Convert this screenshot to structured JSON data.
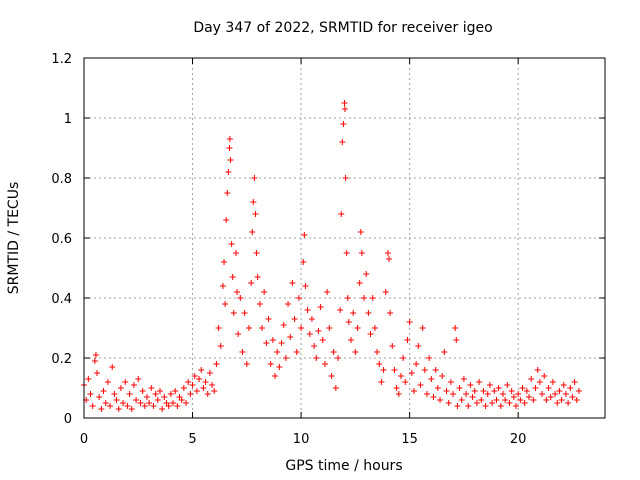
{
  "chart_data": {
    "type": "scatter",
    "title": "Day 347 of 2022, SRMTID for receiver igeo",
    "xlabel": "GPS time / hours",
    "ylabel": "SRMTID / TECUs",
    "xlim": [
      0,
      24
    ],
    "ylim": [
      0,
      1.2
    ],
    "xticks": [
      0,
      5,
      10,
      15,
      20
    ],
    "xtick_labels": [
      "0",
      "5",
      "10",
      "15",
      "20"
    ],
    "yticks": [
      0,
      0.2,
      0.4,
      0.6,
      0.8,
      1,
      1.2
    ],
    "ytick_labels": [
      "0",
      "0.2",
      "0.4",
      "0.6",
      "0.8",
      "1",
      "1.2"
    ],
    "grid": true,
    "marker": "+",
    "color": "#ff0000",
    "series": [
      {
        "name": "SRMTID",
        "points": [
          [
            0.0,
            0.11
          ],
          [
            0.1,
            0.06
          ],
          [
            0.2,
            0.13
          ],
          [
            0.3,
            0.08
          ],
          [
            0.4,
            0.04
          ],
          [
            0.5,
            0.19
          ],
          [
            0.55,
            0.21
          ],
          [
            0.6,
            0.15
          ],
          [
            0.7,
            0.07
          ],
          [
            0.8,
            0.03
          ],
          [
            0.9,
            0.09
          ],
          [
            1.0,
            0.05
          ],
          [
            1.1,
            0.12
          ],
          [
            1.2,
            0.04
          ],
          [
            1.3,
            0.17
          ],
          [
            1.4,
            0.08
          ],
          [
            1.5,
            0.06
          ],
          [
            1.6,
            0.03
          ],
          [
            1.7,
            0.1
          ],
          [
            1.8,
            0.05
          ],
          [
            1.9,
            0.12
          ],
          [
            2.0,
            0.04
          ],
          [
            2.1,
            0.08
          ],
          [
            2.2,
            0.03
          ],
          [
            2.3,
            0.11
          ],
          [
            2.4,
            0.06
          ],
          [
            2.5,
            0.13
          ],
          [
            2.6,
            0.05
          ],
          [
            2.7,
            0.09
          ],
          [
            2.8,
            0.04
          ],
          [
            2.9,
            0.07
          ],
          [
            3.0,
            0.05
          ],
          [
            3.1,
            0.1
          ],
          [
            3.2,
            0.04
          ],
          [
            3.3,
            0.08
          ],
          [
            3.4,
            0.06
          ],
          [
            3.5,
            0.09
          ],
          [
            3.6,
            0.03
          ],
          [
            3.7,
            0.07
          ],
          [
            3.8,
            0.05
          ],
          [
            3.9,
            0.04
          ],
          [
            4.0,
            0.08
          ],
          [
            4.1,
            0.05
          ],
          [
            4.2,
            0.09
          ],
          [
            4.3,
            0.04
          ],
          [
            4.4,
            0.07
          ],
          [
            4.5,
            0.06
          ],
          [
            4.6,
            0.1
          ],
          [
            4.7,
            0.05
          ],
          [
            4.8,
            0.12
          ],
          [
            4.9,
            0.08
          ],
          [
            5.0,
            0.11
          ],
          [
            5.1,
            0.14
          ],
          [
            5.2,
            0.09
          ],
          [
            5.3,
            0.13
          ],
          [
            5.4,
            0.16
          ],
          [
            5.5,
            0.1
          ],
          [
            5.6,
            0.12
          ],
          [
            5.7,
            0.08
          ],
          [
            5.8,
            0.15
          ],
          [
            5.9,
            0.11
          ],
          [
            6.0,
            0.09
          ],
          [
            6.1,
            0.18
          ],
          [
            6.2,
            0.3
          ],
          [
            6.3,
            0.24
          ],
          [
            6.4,
            0.44
          ],
          [
            6.45,
            0.52
          ],
          [
            6.5,
            0.38
          ],
          [
            6.55,
            0.66
          ],
          [
            6.6,
            0.75
          ],
          [
            6.65,
            0.82
          ],
          [
            6.7,
            0.9
          ],
          [
            6.72,
            0.93
          ],
          [
            6.75,
            0.86
          ],
          [
            6.8,
            0.58
          ],
          [
            6.85,
            0.47
          ],
          [
            6.9,
            0.35
          ],
          [
            7.0,
            0.55
          ],
          [
            7.05,
            0.42
          ],
          [
            7.1,
            0.28
          ],
          [
            7.2,
            0.4
          ],
          [
            7.3,
            0.22
          ],
          [
            7.4,
            0.35
          ],
          [
            7.5,
            0.18
          ],
          [
            7.6,
            0.3
          ],
          [
            7.7,
            0.45
          ],
          [
            7.75,
            0.62
          ],
          [
            7.8,
            0.72
          ],
          [
            7.85,
            0.8
          ],
          [
            7.9,
            0.68
          ],
          [
            7.95,
            0.55
          ],
          [
            8.0,
            0.47
          ],
          [
            8.1,
            0.38
          ],
          [
            8.2,
            0.3
          ],
          [
            8.3,
            0.42
          ],
          [
            8.4,
            0.25
          ],
          [
            8.5,
            0.33
          ],
          [
            8.6,
            0.18
          ],
          [
            8.7,
            0.26
          ],
          [
            8.8,
            0.14
          ],
          [
            8.9,
            0.22
          ],
          [
            9.0,
            0.17
          ],
          [
            9.1,
            0.25
          ],
          [
            9.2,
            0.31
          ],
          [
            9.3,
            0.2
          ],
          [
            9.4,
            0.38
          ],
          [
            9.5,
            0.27
          ],
          [
            9.6,
            0.45
          ],
          [
            9.7,
            0.33
          ],
          [
            9.8,
            0.22
          ],
          [
            9.9,
            0.4
          ],
          [
            10.0,
            0.3
          ],
          [
            10.1,
            0.52
          ],
          [
            10.15,
            0.61
          ],
          [
            10.2,
            0.44
          ],
          [
            10.3,
            0.36
          ],
          [
            10.4,
            0.28
          ],
          [
            10.5,
            0.33
          ],
          [
            10.6,
            0.24
          ],
          [
            10.7,
            0.2
          ],
          [
            10.8,
            0.29
          ],
          [
            10.9,
            0.37
          ],
          [
            11.0,
            0.26
          ],
          [
            11.1,
            0.18
          ],
          [
            11.2,
            0.42
          ],
          [
            11.3,
            0.3
          ],
          [
            11.4,
            0.14
          ],
          [
            11.5,
            0.22
          ],
          [
            11.6,
            0.1
          ],
          [
            11.7,
            0.2
          ],
          [
            11.8,
            0.36
          ],
          [
            11.85,
            0.68
          ],
          [
            11.9,
            0.92
          ],
          [
            11.95,
            0.98
          ],
          [
            12.0,
            1.05
          ],
          [
            12.02,
            1.03
          ],
          [
            12.05,
            0.8
          ],
          [
            12.1,
            0.55
          ],
          [
            12.15,
            0.4
          ],
          [
            12.2,
            0.32
          ],
          [
            12.3,
            0.26
          ],
          [
            12.4,
            0.35
          ],
          [
            12.5,
            0.22
          ],
          [
            12.6,
            0.3
          ],
          [
            12.7,
            0.45
          ],
          [
            12.75,
            0.62
          ],
          [
            12.8,
            0.55
          ],
          [
            12.9,
            0.4
          ],
          [
            13.0,
            0.48
          ],
          [
            13.1,
            0.35
          ],
          [
            13.2,
            0.28
          ],
          [
            13.3,
            0.4
          ],
          [
            13.4,
            0.3
          ],
          [
            13.5,
            0.22
          ],
          [
            13.6,
            0.18
          ],
          [
            13.7,
            0.12
          ],
          [
            13.8,
            0.16
          ],
          [
            13.9,
            0.42
          ],
          [
            14.0,
            0.55
          ],
          [
            14.05,
            0.53
          ],
          [
            14.1,
            0.35
          ],
          [
            14.2,
            0.24
          ],
          [
            14.3,
            0.16
          ],
          [
            14.4,
            0.1
          ],
          [
            14.5,
            0.08
          ],
          [
            14.6,
            0.14
          ],
          [
            14.7,
            0.2
          ],
          [
            14.8,
            0.12
          ],
          [
            14.9,
            0.26
          ],
          [
            15.0,
            0.32
          ],
          [
            15.1,
            0.15
          ],
          [
            15.2,
            0.09
          ],
          [
            15.3,
            0.18
          ],
          [
            15.4,
            0.24
          ],
          [
            15.5,
            0.11
          ],
          [
            15.6,
            0.3
          ],
          [
            15.7,
            0.16
          ],
          [
            15.8,
            0.08
          ],
          [
            15.9,
            0.2
          ],
          [
            16.0,
            0.13
          ],
          [
            16.1,
            0.07
          ],
          [
            16.2,
            0.16
          ],
          [
            16.3,
            0.1
          ],
          [
            16.4,
            0.06
          ],
          [
            16.5,
            0.14
          ],
          [
            16.6,
            0.22
          ],
          [
            16.7,
            0.09
          ],
          [
            16.8,
            0.05
          ],
          [
            16.9,
            0.12
          ],
          [
            17.0,
            0.08
          ],
          [
            17.1,
            0.3
          ],
          [
            17.15,
            0.26
          ],
          [
            17.2,
            0.04
          ],
          [
            17.3,
            0.1
          ],
          [
            17.4,
            0.06
          ],
          [
            17.5,
            0.13
          ],
          [
            17.6,
            0.08
          ],
          [
            17.7,
            0.04
          ],
          [
            17.8,
            0.11
          ],
          [
            17.9,
            0.07
          ],
          [
            18.0,
            0.09
          ],
          [
            18.1,
            0.05
          ],
          [
            18.2,
            0.12
          ],
          [
            18.3,
            0.06
          ],
          [
            18.4,
            0.09
          ],
          [
            18.5,
            0.04
          ],
          [
            18.6,
            0.08
          ],
          [
            18.7,
            0.11
          ],
          [
            18.8,
            0.05
          ],
          [
            18.9,
            0.09
          ],
          [
            19.0,
            0.06
          ],
          [
            19.1,
            0.1
          ],
          [
            19.2,
            0.04
          ],
          [
            19.3,
            0.08
          ],
          [
            19.4,
            0.06
          ],
          [
            19.5,
            0.11
          ],
          [
            19.6,
            0.05
          ],
          [
            19.7,
            0.09
          ],
          [
            19.8,
            0.07
          ],
          [
            19.9,
            0.04
          ],
          [
            20.0,
            0.08
          ],
          [
            20.1,
            0.06
          ],
          [
            20.2,
            0.1
          ],
          [
            20.3,
            0.05
          ],
          [
            20.4,
            0.09
          ],
          [
            20.5,
            0.07
          ],
          [
            20.6,
            0.13
          ],
          [
            20.7,
            0.06
          ],
          [
            20.8,
            0.1
          ],
          [
            20.9,
            0.16
          ],
          [
            21.0,
            0.12
          ],
          [
            21.1,
            0.08
          ],
          [
            21.2,
            0.14
          ],
          [
            21.3,
            0.06
          ],
          [
            21.4,
            0.1
          ],
          [
            21.5,
            0.07
          ],
          [
            21.6,
            0.12
          ],
          [
            21.7,
            0.08
          ],
          [
            21.8,
            0.05
          ],
          [
            21.9,
            0.09
          ],
          [
            22.0,
            0.06
          ],
          [
            22.1,
            0.11
          ],
          [
            22.2,
            0.08
          ],
          [
            22.3,
            0.05
          ],
          [
            22.4,
            0.1
          ],
          [
            22.5,
            0.07
          ],
          [
            22.6,
            0.12
          ],
          [
            22.7,
            0.06
          ],
          [
            22.8,
            0.09
          ]
        ]
      }
    ]
  }
}
